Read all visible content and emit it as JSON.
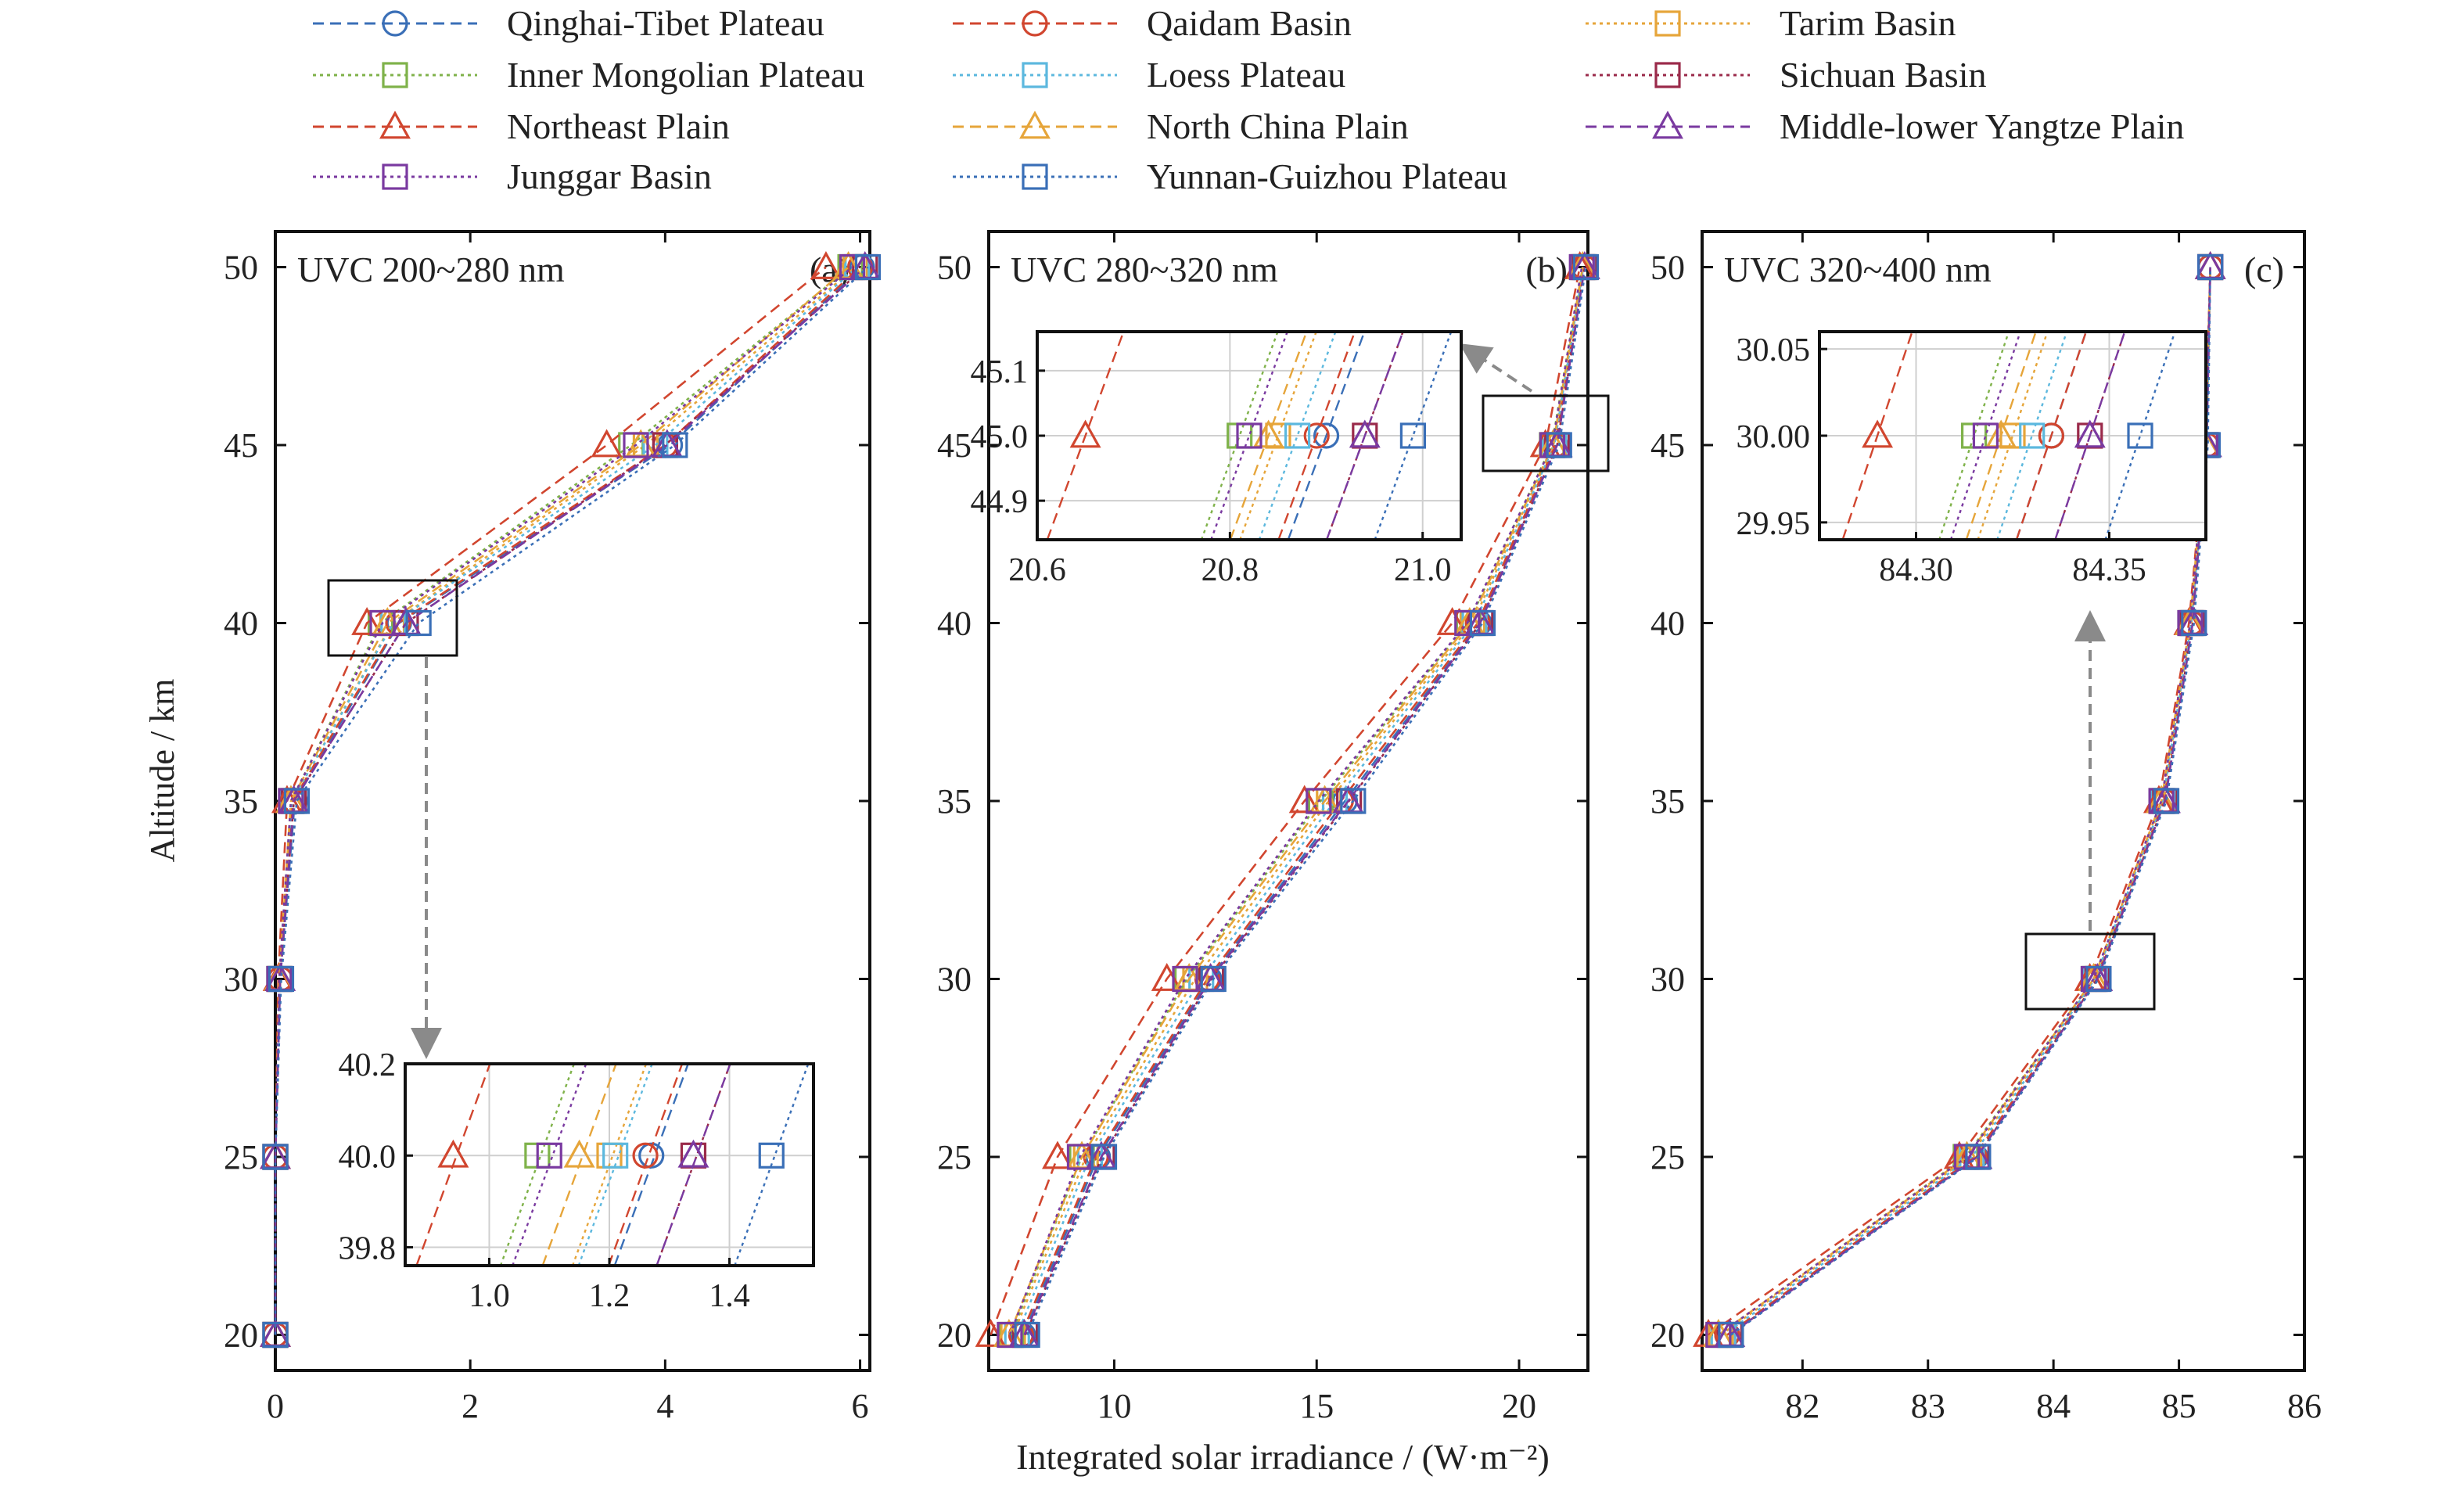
{
  "legend": {
    "placement": "top",
    "entries": [
      {
        "name": "Qinghai-Tibet Plateau",
        "color": "#3a6fb7",
        "marker": "circle",
        "dash": "dashed"
      },
      {
        "name": "Qaidam Basin",
        "color": "#d1462f",
        "marker": "circle",
        "dash": "dashed"
      },
      {
        "name": "Tarim Basin",
        "color": "#e6a53a",
        "marker": "square",
        "dash": "dotted"
      },
      {
        "name": "Inner Mongolian Plateau",
        "color": "#7fb24a",
        "marker": "square",
        "dash": "dotted"
      },
      {
        "name": "Loess Plateau",
        "color": "#5cb8de",
        "marker": "square",
        "dash": "dotted"
      },
      {
        "name": "Sichuan Basin",
        "color": "#9a2a4a",
        "marker": "square",
        "dash": "dotted"
      },
      {
        "name": "Northeast Plain",
        "color": "#d1462f",
        "marker": "triangle",
        "dash": "dashed"
      },
      {
        "name": "North China Plain",
        "color": "#e6a53a",
        "marker": "triangle",
        "dash": "dashed"
      },
      {
        "name": "Middle-lower Yangtze Plain",
        "color": "#7a3aa0",
        "marker": "triangle",
        "dash": "dashed"
      },
      {
        "name": "Junggar Basin",
        "color": "#7a3aa0",
        "marker": "square",
        "dash": "dotted"
      },
      {
        "name": "Yunnan-Guizhou Plateau",
        "color": "#3a6fb7",
        "marker": "square",
        "dash": "dotted"
      }
    ]
  },
  "axes": {
    "ylabel": "Altitude / km",
    "xlabel": "Integrated solar irradiance / (W·m⁻²)"
  },
  "chart_data": [
    {
      "type": "line",
      "panel_label": "(a)",
      "title": "UVC 200~280 nm",
      "xlim": [
        0,
        6.1
      ],
      "ylim": [
        19,
        51
      ],
      "xticks": [
        "0",
        "2",
        "4",
        "6"
      ],
      "yticks": [
        "20",
        "25",
        "30",
        "35",
        "40",
        "45",
        "50"
      ],
      "grid": false,
      "y": [
        20,
        25,
        30,
        35,
        40,
        45,
        50
      ],
      "series": [
        {
          "name": "Qinghai-Tibet Plateau",
          "x": [
            0,
            0,
            0.05,
            0.2,
            1.27,
            4.05,
            6.02
          ]
        },
        {
          "name": "Qaidam Basin",
          "x": [
            0,
            0,
            0.05,
            0.18,
            1.26,
            4.0,
            6.0
          ]
        },
        {
          "name": "Tarim Basin",
          "x": [
            0,
            0,
            0.04,
            0.17,
            1.2,
            3.8,
            5.95
          ]
        },
        {
          "name": "Inner Mongolian Plateau",
          "x": [
            0,
            0,
            0.04,
            0.16,
            1.08,
            3.65,
            5.9
          ]
        },
        {
          "name": "Loess Plateau",
          "x": [
            0,
            0,
            0.04,
            0.17,
            1.21,
            3.9,
            5.97
          ]
        },
        {
          "name": "Sichuan Basin",
          "x": [
            0,
            0,
            0.05,
            0.19,
            1.34,
            4.0,
            6.05
          ]
        },
        {
          "name": "Northeast Plain",
          "x": [
            0,
            0,
            0.03,
            0.12,
            0.94,
            3.4,
            5.65
          ]
        },
        {
          "name": "North China Plain",
          "x": [
            0,
            0,
            0.04,
            0.16,
            1.15,
            3.75,
            5.88
          ]
        },
        {
          "name": "Middle-lower Yangtze Plain",
          "x": [
            0,
            0,
            0.05,
            0.19,
            1.34,
            4.02,
            6.05
          ]
        },
        {
          "name": "Junggar Basin",
          "x": [
            0,
            0,
            0.04,
            0.16,
            1.1,
            3.7,
            5.92
          ]
        },
        {
          "name": "Yunnan-Guizhou Plateau",
          "x": [
            0,
            0,
            0.06,
            0.22,
            1.47,
            4.1,
            6.08
          ]
        }
      ],
      "inset": {
        "xlim": [
          0.86,
          1.54
        ],
        "ylim": [
          39.76,
          40.2
        ],
        "xticks": [
          "1.0",
          "1.2",
          "1.4"
        ],
        "yticks": [
          "39.8",
          "40.0",
          "40.2"
        ]
      }
    },
    {
      "type": "line",
      "panel_label": "(b)",
      "title": "UVC 280~320 nm",
      "xlim": [
        6.9,
        21.7
      ],
      "ylim": [
        19,
        51
      ],
      "xticks": [
        "10",
        "15",
        "20"
      ],
      "yticks": [
        "20",
        "25",
        "30",
        "35",
        "40",
        "45",
        "50"
      ],
      "grid": false,
      "y": [
        20,
        25,
        30,
        35,
        40,
        45,
        50
      ],
      "series": [
        {
          "name": "Qinghai-Tibet Plateau",
          "x": [
            7.75,
            9.6,
            12.35,
            15.7,
            19.02,
            20.9,
            21.6
          ]
        },
        {
          "name": "Qaidam Basin",
          "x": [
            7.7,
            9.55,
            12.3,
            15.6,
            18.98,
            20.89,
            21.6
          ]
        },
        {
          "name": "Tarim Basin",
          "x": [
            7.5,
            9.3,
            12.0,
            15.3,
            18.85,
            20.85,
            21.58
          ]
        },
        {
          "name": "Inner Mongolian Plateau",
          "x": [
            7.45,
            9.2,
            11.8,
            15.1,
            18.75,
            20.81,
            21.56
          ]
        },
        {
          "name": "Loess Plateau",
          "x": [
            7.6,
            9.4,
            12.15,
            15.45,
            18.9,
            20.87,
            21.59
          ]
        },
        {
          "name": "Sichuan Basin",
          "x": [
            7.8,
            9.7,
            12.4,
            15.8,
            19.05,
            20.94,
            21.62
          ]
        },
        {
          "name": "Northeast Plain",
          "x": [
            6.95,
            8.6,
            11.3,
            14.7,
            18.35,
            20.65,
            21.5
          ]
        },
        {
          "name": "North China Plain",
          "x": [
            7.4,
            9.2,
            11.85,
            15.2,
            18.78,
            20.84,
            21.57
          ]
        },
        {
          "name": "Middle-lower Yangtze Plain",
          "x": [
            7.78,
            9.68,
            12.38,
            15.78,
            19.04,
            20.94,
            21.62
          ]
        },
        {
          "name": "Junggar Basin",
          "x": [
            7.42,
            9.15,
            11.75,
            15.05,
            18.72,
            20.82,
            21.55
          ]
        },
        {
          "name": "Yunnan-Guizhou Plateau",
          "x": [
            7.85,
            9.75,
            12.45,
            15.9,
            19.1,
            20.99,
            21.65
          ]
        }
      ],
      "inset": {
        "xlim": [
          20.6,
          21.04
        ],
        "ylim": [
          44.84,
          45.16
        ],
        "xticks": [
          "20.6",
          "20.8",
          "21.0"
        ],
        "yticks": [
          "44.9",
          "45.0",
          "45.1"
        ]
      }
    },
    {
      "type": "line",
      "panel_label": "(c)",
      "title": "UVC 320~400 nm",
      "xlim": [
        81.2,
        86.0
      ],
      "ylim": [
        19,
        51
      ],
      "xticks": [
        "82",
        "83",
        "84",
        "85",
        "86"
      ],
      "yticks": [
        "20",
        "25",
        "30",
        "35",
        "40",
        "45",
        "50"
      ],
      "grid": false,
      "y": [
        20,
        25,
        30,
        35,
        40,
        45,
        50
      ],
      "series": [
        {
          "name": "Qinghai-Tibet Plateau",
          "x": [
            81.4,
            83.38,
            84.34,
            84.88,
            85.1,
            85.22,
            85.25
          ]
        },
        {
          "name": "Qaidam Basin",
          "x": [
            81.4,
            83.37,
            84.34,
            84.88,
            85.1,
            85.22,
            85.25
          ]
        },
        {
          "name": "Tarim Basin",
          "x": [
            81.35,
            83.33,
            84.33,
            84.87,
            85.1,
            85.22,
            85.25
          ]
        },
        {
          "name": "Inner Mongolian Plateau",
          "x": [
            81.33,
            83.3,
            84.32,
            84.86,
            85.09,
            85.21,
            85.25
          ]
        },
        {
          "name": "Loess Plateau",
          "x": [
            81.37,
            83.35,
            84.33,
            84.87,
            85.1,
            85.22,
            85.25
          ]
        },
        {
          "name": "Sichuan Basin",
          "x": [
            81.42,
            83.39,
            84.35,
            84.89,
            85.11,
            85.22,
            85.25
          ]
        },
        {
          "name": "Northeast Plain",
          "x": [
            81.25,
            83.25,
            84.29,
            84.84,
            85.08,
            85.21,
            85.25
          ]
        },
        {
          "name": "North China Plain",
          "x": [
            81.33,
            83.31,
            84.32,
            84.86,
            85.09,
            85.21,
            85.25
          ]
        },
        {
          "name": "Middle-lower Yangtze Plain",
          "x": [
            81.42,
            83.39,
            84.35,
            84.89,
            85.11,
            85.22,
            85.25
          ]
        },
        {
          "name": "Junggar Basin",
          "x": [
            81.33,
            83.31,
            84.32,
            84.86,
            85.09,
            85.21,
            85.25
          ]
        },
        {
          "name": "Yunnan-Guizhou Plateau",
          "x": [
            81.43,
            83.4,
            84.36,
            84.9,
            85.12,
            85.23,
            85.25
          ]
        }
      ],
      "inset": {
        "xlim": [
          84.275,
          84.375
        ],
        "ylim": [
          29.94,
          30.06
        ],
        "xticks": [
          "84.30",
          "84.35"
        ],
        "yticks": [
          "29.95",
          "30.00",
          "30.05"
        ],
        "center_y": 30.0,
        "values": [
          84.335,
          84.335,
          84.325,
          84.315,
          84.33,
          84.345,
          84.29,
          84.322,
          84.345,
          84.318,
          84.358
        ]
      }
    }
  ]
}
